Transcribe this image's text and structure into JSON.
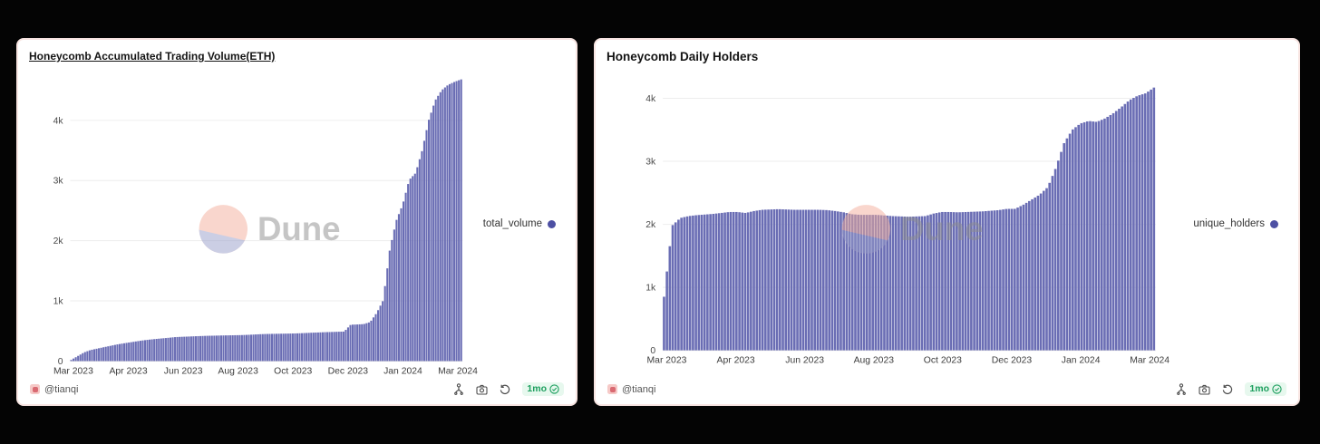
{
  "page": {
    "background": "#040404"
  },
  "watermark": {
    "text": "Dune"
  },
  "legend_dot_color": "#4d50a3",
  "footer": {
    "author": "@tianqi",
    "badge": "1mo"
  },
  "icons": [
    "fork-icon",
    "camera-icon",
    "refresh-icon",
    "check-circle-icon"
  ],
  "chart_data": [
    {
      "type": "bar",
      "title": "Honeycomb Accumulated Trading Volume(ETH)",
      "xlabel": "",
      "ylabel": "",
      "x_unit": "day",
      "x_range": [
        "Mar 2023",
        "Mar 2024"
      ],
      "x_tick_labels": [
        "Mar 2023",
        "Apr 2023",
        "Jun 2023",
        "Aug 2023",
        "Oct 2023",
        "Dec 2023",
        "Jan 2024",
        "Mar 2024"
      ],
      "ylim": [
        0,
        4800
      ],
      "y_tick_values": [
        0,
        1000,
        2000,
        3000,
        4000
      ],
      "y_tick_labels": [
        "0",
        "1k",
        "2k",
        "3k",
        "4k"
      ],
      "grid": true,
      "legend_position": "right",
      "bar_color": "#6a6db4",
      "series": [
        {
          "name": "total_volume",
          "values": [
            20,
            82,
            145,
            184,
            207,
            230,
            252,
            275,
            293,
            310,
            327,
            343,
            356,
            367,
            377,
            387,
            398,
            403,
            407,
            412,
            416,
            420,
            422,
            425,
            427,
            429,
            431,
            435,
            440,
            446,
            450,
            452,
            454,
            456,
            458,
            461,
            466,
            471,
            475,
            480,
            483,
            487,
            490,
            604,
            608,
            614,
            648,
            800,
            1010,
            1840,
            2330,
            2600,
            3010,
            3125,
            3500,
            4000,
            4330,
            4500,
            4590,
            4640,
            4680
          ]
        }
      ]
    },
    {
      "type": "bar",
      "title": "Honeycomb Daily Holders",
      "xlabel": "",
      "ylabel": "",
      "x_unit": "day",
      "x_range": [
        "Mar 2023",
        "Mar 2024"
      ],
      "x_tick_labels": [
        "Mar 2023",
        "Apr 2023",
        "Jun 2023",
        "Aug 2023",
        "Oct 2023",
        "Dec 2023",
        "Jan 2024",
        "Mar 2024"
      ],
      "ylim": [
        0,
        4500
      ],
      "y_tick_values": [
        0,
        1000,
        2000,
        3000,
        4000
      ],
      "y_tick_labels": [
        "0",
        "1k",
        "2k",
        "3k",
        "4k"
      ],
      "grid": true,
      "legend_position": "right",
      "bar_color": "#6a6db4",
      "series": [
        {
          "name": "unique_holders",
          "values": [
            850,
            1980,
            2100,
            2130,
            2145,
            2155,
            2165,
            2180,
            2195,
            2195,
            2180,
            2210,
            2230,
            2235,
            2240,
            2235,
            2230,
            2230,
            2230,
            2230,
            2225,
            2210,
            2190,
            2160,
            2150,
            2150,
            2150,
            2140,
            2130,
            2125,
            2120,
            2125,
            2130,
            2170,
            2195,
            2195,
            2190,
            2195,
            2200,
            2205,
            2215,
            2225,
            2245,
            2245,
            2310,
            2390,
            2470,
            2590,
            2900,
            3290,
            3500,
            3600,
            3640,
            3625,
            3680,
            3760,
            3860,
            3970,
            4040,
            4080,
            4170
          ]
        }
      ]
    }
  ]
}
